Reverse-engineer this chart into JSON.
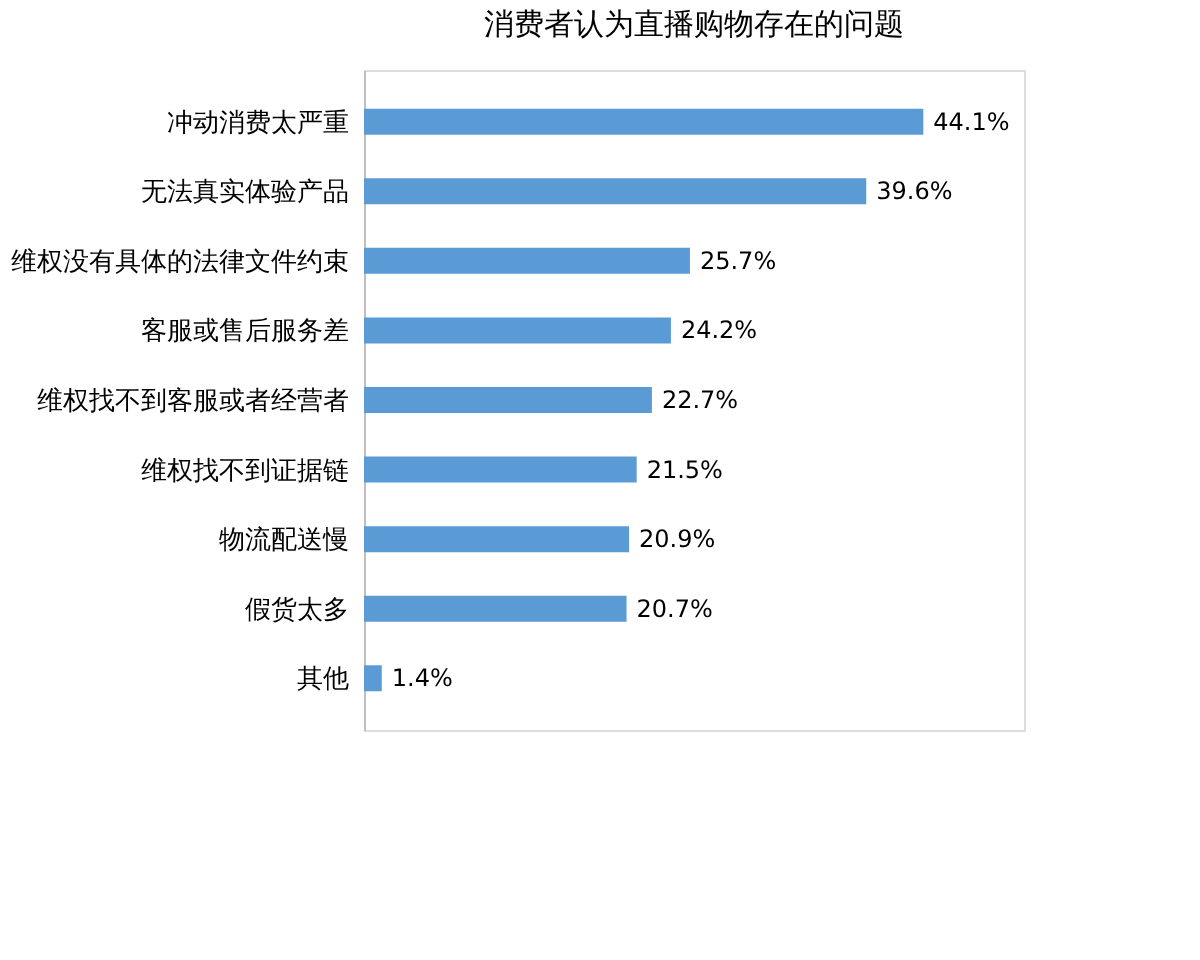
{
  "chart_data": {
    "type": "bar",
    "orientation": "horizontal",
    "title": "消费者认为直播购物存在的问题",
    "categories": [
      "冲动消费太严重",
      "无法真实体验产品",
      "维权没有具体的法律文件约束",
      "客服或售后服务差",
      "维权找不到客服或者经营者",
      "维权找不到证据链",
      "物流配送慢",
      "假货太多",
      "其他"
    ],
    "values": [
      44.1,
      39.6,
      25.7,
      24.2,
      22.7,
      21.5,
      20.9,
      20.7,
      1.4
    ],
    "value_labels": [
      "44.1%",
      "39.6%",
      "25.7%",
      "24.2%",
      "22.7%",
      "21.5%",
      "20.9%",
      "20.7%",
      "1.4%"
    ],
    "color": "#5b9bd5",
    "grid": false,
    "tick_labels": "y"
  }
}
